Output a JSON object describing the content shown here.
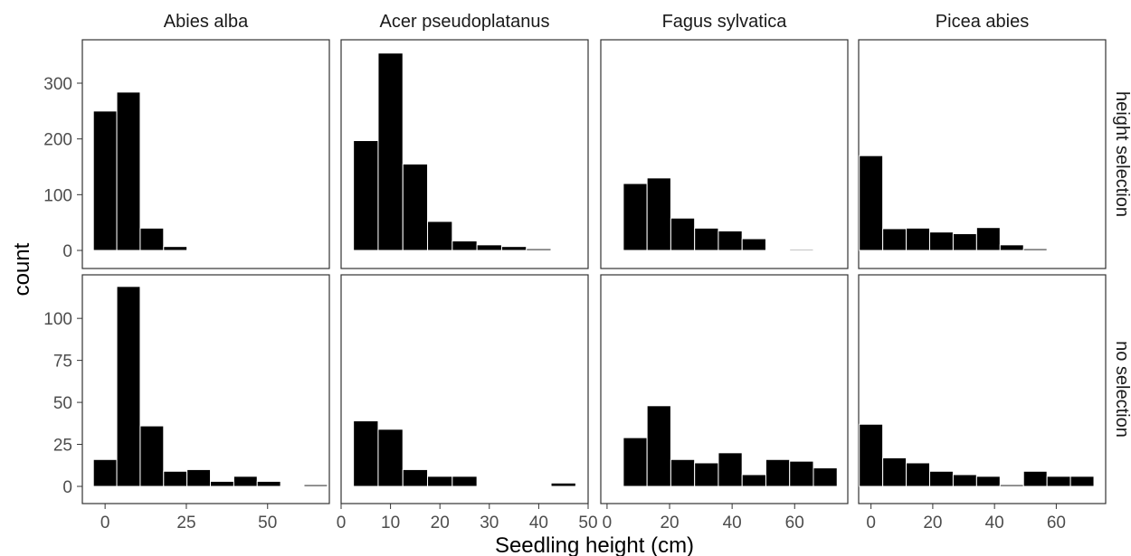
{
  "chart_data": {
    "type": "bar",
    "subtype": "faceted-histogram",
    "xlabel": "Seedling height (cm)",
    "ylabel": "count",
    "bar_color": "#000000",
    "bar_outline": "#ffffff",
    "panel_border": "#333333",
    "grid": false,
    "columns": [
      "Abies alba",
      "Acer pseudoplatanus",
      "Fagus sylvatica",
      "Picea abies"
    ],
    "rows": [
      "height selection",
      "no selection"
    ],
    "row_scales": [
      {
        "ylim": [
          0,
          360
        ],
        "ticks": [
          0,
          100,
          200,
          300
        ]
      },
      {
        "ylim": [
          0,
          120
        ],
        "ticks": [
          0,
          25,
          50,
          75,
          100
        ]
      }
    ],
    "column_scales": [
      {
        "xlim": [
          -7,
          69
        ],
        "ticks": [
          0,
          25,
          50
        ]
      },
      {
        "xlim": [
          0,
          50
        ],
        "ticks": [
          0,
          10,
          20,
          30,
          40,
          50
        ]
      },
      {
        "xlim": [
          -2,
          77
        ],
        "ticks": [
          0,
          20,
          40,
          60
        ]
      },
      {
        "xlim": [
          -4,
          76
        ],
        "ticks": [
          0,
          20,
          40,
          60
        ]
      }
    ],
    "panels": [
      {
        "column": "Abies alba",
        "row": "height selection",
        "bin_width": 7.2,
        "x": [
          0,
          7.2,
          14.4,
          21.6
        ],
        "counts": [
          250,
          284,
          40,
          7
        ]
      },
      {
        "column": "Acer pseudoplatanus",
        "row": "height selection",
        "bin_width": 5,
        "x": [
          5,
          10,
          15,
          20,
          25,
          30,
          35,
          40,
          45
        ],
        "counts": [
          197,
          354,
          155,
          52,
          17,
          10,
          7,
          3,
          1
        ]
      },
      {
        "column": "Fagus sylvatica",
        "row": "height selection",
        "bin_width": 7.6,
        "x": [
          9,
          16.6,
          24.2,
          31.8,
          39.4,
          47,
          54.6,
          62.2
        ],
        "counts": [
          120,
          130,
          58,
          40,
          35,
          21,
          1,
          2
        ]
      },
      {
        "column": "Picea abies",
        "row": "height selection",
        "bin_width": 7.6,
        "x": [
          0,
          7.6,
          15.2,
          22.8,
          30.4,
          38,
          45.6,
          53.2
        ],
        "counts": [
          170,
          39,
          40,
          33,
          30,
          41,
          10,
          3
        ]
      },
      {
        "column": "Abies alba",
        "row": "no selection",
        "bin_width": 7.2,
        "x": [
          0,
          7.2,
          14.4,
          21.6,
          28.8,
          36,
          43.2,
          50.4,
          57.6,
          64.8
        ],
        "counts": [
          16,
          119,
          36,
          9,
          10,
          3,
          6,
          3,
          0,
          1
        ]
      },
      {
        "column": "Acer pseudoplatanus",
        "row": "no selection",
        "bin_width": 5,
        "x": [
          5,
          10,
          15,
          20,
          25,
          30,
          35,
          40,
          45
        ],
        "counts": [
          39,
          34,
          10,
          6,
          6,
          0,
          0,
          0,
          2
        ]
      },
      {
        "column": "Fagus sylvatica",
        "row": "no selection",
        "bin_width": 7.6,
        "x": [
          9,
          16.6,
          24.2,
          31.8,
          39.4,
          47,
          54.6,
          62.2,
          69.8
        ],
        "counts": [
          29,
          48,
          16,
          14,
          20,
          7,
          16,
          15,
          11
        ]
      },
      {
        "column": "Picea abies",
        "row": "no selection",
        "bin_width": 7.6,
        "x": [
          0,
          7.6,
          15.2,
          22.8,
          30.4,
          38,
          45.6,
          53.2,
          60.8,
          68.4
        ],
        "counts": [
          37,
          17,
          14,
          9,
          7,
          6,
          1,
          9,
          6,
          6
        ]
      }
    ]
  }
}
